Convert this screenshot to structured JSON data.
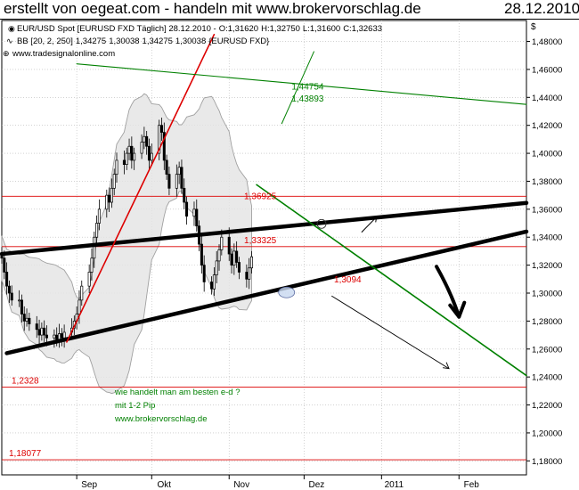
{
  "header": {
    "title": "erstellt von oegeat.com - handeln mit www.brokervorschlag.de",
    "date": "28.12.2010"
  },
  "legend": {
    "symbol_line": "EUR/USD Spot [EURUSD FXD  Täglich] 28.12.2010 -",
    "ohlc": [
      {
        "label": "O:1,31620",
        "color": "#008000"
      },
      {
        "label": "H:1,32750",
        "color": "#000000"
      },
      {
        "label": "L:1,31600",
        "color": "#000000"
      },
      {
        "label": "C:1,32633",
        "color": "#cc0000"
      }
    ],
    "bb_prefix": "BB [20, 2, 250]",
    "bb_values": [
      {
        "label": "1,34275",
        "color": "#808000"
      },
      {
        "label": "1,30038",
        "color": "#808000"
      },
      {
        "label": "1,34275",
        "color": "#a0a0a0"
      },
      {
        "label": "1,30038",
        "color": "#a0a0a0"
      }
    ],
    "bb_suffix": "{EURUSD FXD}",
    "site": "www.tradesignalonline.com"
  },
  "colors": {
    "candle_up": "#ffffff",
    "candle_down": "#000000",
    "band_fill": "#e4e4e4",
    "band_line": "#a0a0a0",
    "h_line": "#dd0000",
    "green": "#008000",
    "trendline": "#000000"
  },
  "chart_data": {
    "type": "candlestick",
    "instrument": "EUR/USD",
    "timeframe": "daily",
    "y_axis": {
      "symbol": "$",
      "range": [
        1.17,
        1.495
      ],
      "ticks": [
        "1,18000",
        "1,20000",
        "1,22000",
        "1,24000",
        "1,26000",
        "1,28000",
        "1,30000",
        "1,32000",
        "1,34000",
        "1,36000",
        "1,38000",
        "1,40000",
        "1,42000",
        "1,44000",
        "1,46000",
        "1,48000"
      ],
      "tick_values": [
        1.18,
        1.2,
        1.22,
        1.24,
        1.26,
        1.28,
        1.3,
        1.32,
        1.34,
        1.36,
        1.38,
        1.4,
        1.42,
        1.44,
        1.46,
        1.48
      ]
    },
    "x_axis": {
      "range": [
        "2010-08-02",
        "2011-02-28"
      ],
      "ticks": [
        {
          "label": "Sep",
          "date": "2010-09-01"
        },
        {
          "label": "Okt",
          "date": "2010-10-01"
        },
        {
          "label": "Nov",
          "date": "2010-11-01"
        },
        {
          "label": "Dez",
          "date": "2010-12-01"
        },
        {
          "label": "2011",
          "date": "2011-01-01"
        },
        {
          "label": "Feb",
          "date": "2011-02-01"
        }
      ]
    },
    "grid": true,
    "closes": [
      1.325,
      1.315,
      1.305,
      1.3,
      1.295,
      1.295,
      1.285,
      1.28,
      1.282,
      1.278,
      1.274,
      1.27,
      1.275,
      1.27,
      1.268,
      1.27,
      1.266,
      1.271,
      1.268,
      1.272,
      1.275,
      1.28,
      1.285,
      1.295,
      1.305,
      1.315,
      1.325,
      1.34,
      1.35,
      1.36,
      1.37,
      1.365,
      1.375,
      1.385,
      1.395,
      1.392,
      1.4,
      1.405,
      1.395,
      1.4,
      1.408,
      1.412,
      1.405,
      1.395,
      1.4,
      1.42,
      1.415,
      1.395,
      1.385,
      1.375,
      1.385,
      1.39,
      1.375,
      1.365,
      1.355,
      1.36,
      1.348,
      1.335,
      1.32,
      1.308,
      1.303,
      1.313,
      1.323,
      1.331,
      1.34,
      1.328,
      1.32,
      1.33,
      1.322,
      1.315,
      1.31,
      1.318,
      1.326
    ],
    "bollinger": {
      "period": 20,
      "stddev": 2,
      "upper": 1.34275,
      "lower": 1.30038
    },
    "horizontal_levels": [
      {
        "label": "1,36925",
        "value": 1.36925
      },
      {
        "label": "1,33325",
        "value": 1.33325
      },
      {
        "label": "1,2328",
        "value": 1.2328
      },
      {
        "label": "1,18077",
        "value": 1.18077
      }
    ],
    "point_labels": [
      {
        "label": "1,44754",
        "date": "2010-11-26",
        "value": 1.4475
      },
      {
        "label": "1,43893",
        "date": "2010-11-26",
        "value": 1.4389
      },
      {
        "label": "1,3094",
        "date": "2010-12-13",
        "value": 1.3094
      }
    ],
    "trendlines": [
      {
        "kind": "resistance",
        "from": {
          "date": "2010-08-02",
          "value": 1.328
        },
        "to": {
          "date": "2011-02-28",
          "value": 1.3645
        }
      },
      {
        "kind": "support",
        "from": {
          "date": "2010-08-04",
          "value": 1.257
        },
        "to": {
          "date": "2011-02-28",
          "value": 1.344
        }
      },
      {
        "kind": "steep-rise",
        "from": {
          "date": "2010-08-28",
          "value": 1.265
        },
        "to": {
          "date": "2010-10-26",
          "value": 1.485
        }
      },
      {
        "kind": "descending",
        "from": {
          "date": "2010-11-12",
          "value": 1.3775
        },
        "to": {
          "date": "2011-02-28",
          "value": 1.241
        }
      },
      {
        "kind": "long-descending",
        "from": {
          "date": "2010-09-01",
          "value": 1.464
        },
        "to": {
          "date": "2011-02-28",
          "value": 1.435
        }
      }
    ],
    "annotations": [
      "wie handelt man am besten e-d ?",
      "mit 1-2 Pip",
      "www.brokervorschlag.de"
    ]
  }
}
